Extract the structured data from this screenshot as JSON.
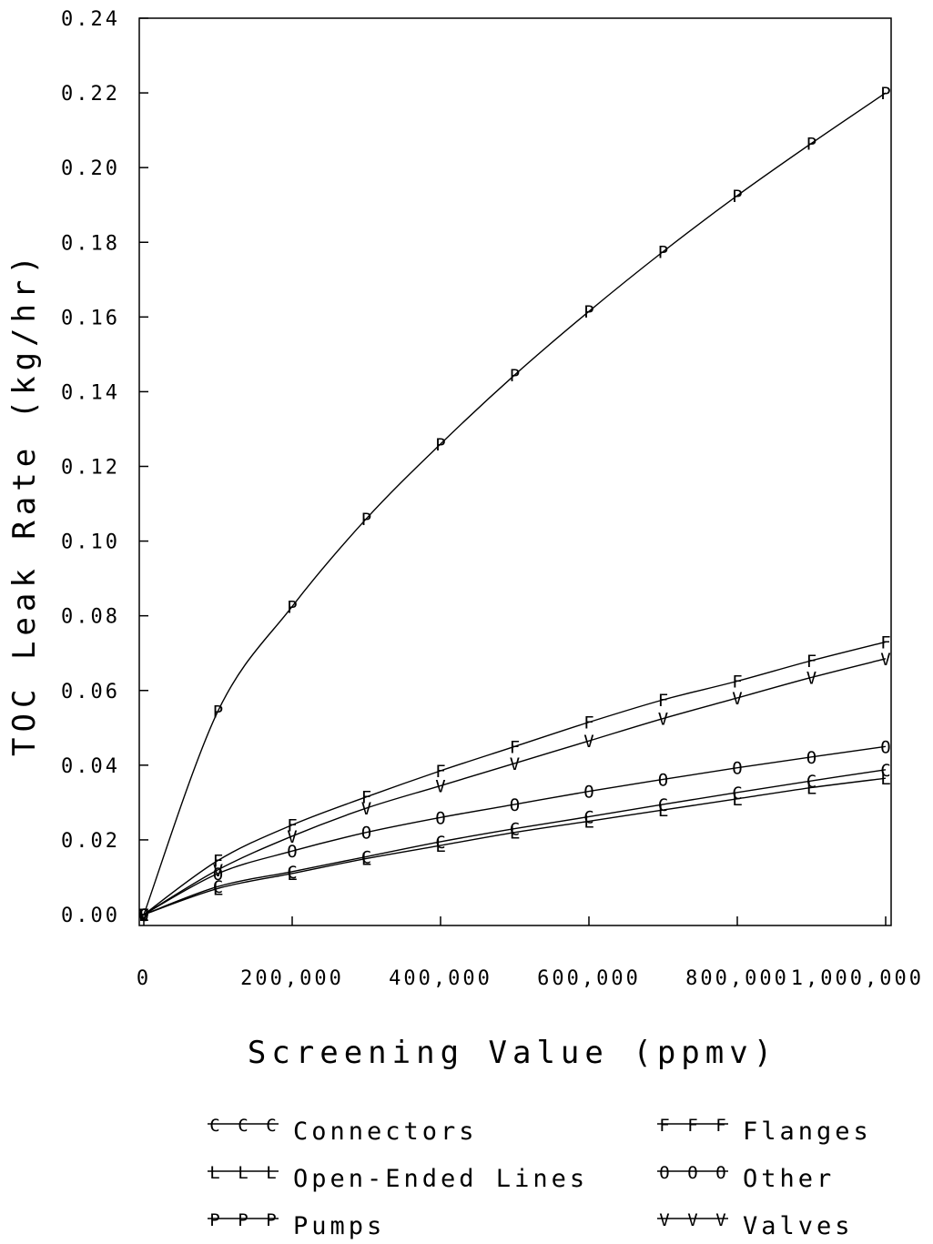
{
  "chart_data": {
    "type": "line",
    "xlabel": "Screening Value (ppmv)",
    "ylabel": "TOC Leak Rate (kg/hr)",
    "xlim": [
      0,
      1000000
    ],
    "ylim": [
      0,
      0.24
    ],
    "x_ticks": [
      0,
      200000,
      400000,
      600000,
      800000,
      1000000
    ],
    "x_tick_labels": [
      "0",
      "200,000",
      "400,000",
      "600,000",
      "800,000",
      "1,000,000"
    ],
    "y_ticks": [
      0,
      0.02,
      0.04,
      0.06,
      0.08,
      0.1,
      0.12,
      0.14,
      0.16,
      0.18,
      0.2,
      0.22,
      0.24
    ],
    "y_tick_labels": [
      "0.00",
      "0.02",
      "0.04",
      "0.06",
      "0.08",
      "0.10",
      "0.12",
      "0.14",
      "0.16",
      "0.18",
      "0.20",
      "0.22",
      "0.24"
    ],
    "grid": false,
    "legend_position": "bottom",
    "x": [
      0,
      100000,
      200000,
      300000,
      400000,
      500000,
      600000,
      700000,
      800000,
      900000,
      1000000
    ],
    "series": [
      {
        "name": "Connectors",
        "marker": "C",
        "values": [
          0,
          0.0075,
          0.0115,
          0.0155,
          0.0195,
          0.023,
          0.0262,
          0.0295,
          0.0327,
          0.0358,
          0.0388
        ]
      },
      {
        "name": "Flanges",
        "marker": "F",
        "values": [
          0,
          0.0145,
          0.024,
          0.0315,
          0.0385,
          0.045,
          0.0515,
          0.0575,
          0.0625,
          0.068,
          0.073
        ]
      },
      {
        "name": "Open-Ended Lines",
        "marker": "L",
        "values": [
          0,
          0.007,
          0.011,
          0.015,
          0.0185,
          0.022,
          0.025,
          0.028,
          0.031,
          0.034,
          0.0365
        ]
      },
      {
        "name": "Other",
        "marker": "O",
        "values": [
          0,
          0.011,
          0.017,
          0.022,
          0.026,
          0.0295,
          0.033,
          0.0362,
          0.0393,
          0.0422,
          0.045
        ]
      },
      {
        "name": "Pumps",
        "marker": "P",
        "values": [
          0,
          0.0545,
          0.0825,
          0.106,
          0.126,
          0.1445,
          0.1615,
          0.1775,
          0.1925,
          0.2065,
          0.22
        ]
      },
      {
        "name": "Valves",
        "marker": "V",
        "values": [
          0,
          0.012,
          0.021,
          0.0285,
          0.0345,
          0.0405,
          0.0465,
          0.0525,
          0.058,
          0.0635,
          0.0685
        ]
      }
    ],
    "legend": [
      {
        "marker": "C",
        "label": "Connectors"
      },
      {
        "marker": "F",
        "label": "Flanges"
      },
      {
        "marker": "L",
        "label": "Open-Ended Lines"
      },
      {
        "marker": "O",
        "label": "Other"
      },
      {
        "marker": "P",
        "label": "Pumps"
      },
      {
        "marker": "V",
        "label": "Valves"
      }
    ],
    "colors": {
      "line": "#000000",
      "background": "#ffffff"
    }
  }
}
